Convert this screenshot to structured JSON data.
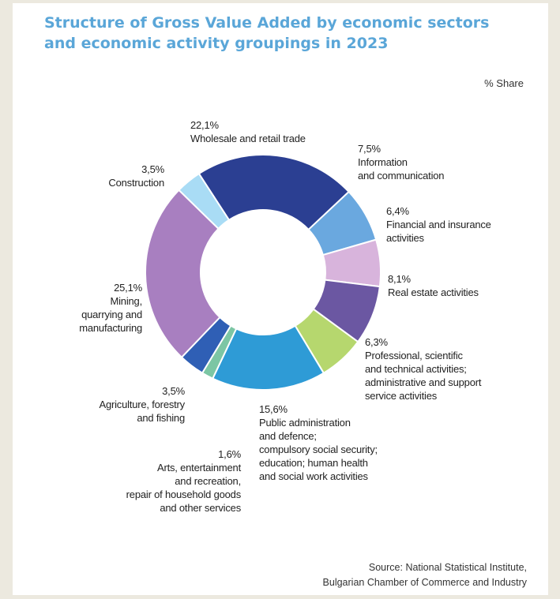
{
  "title_line1": "Structure of Gross Value Added by economic sectors",
  "title_line2": "and economic activity groupings in 2023",
  "unit": "% Share",
  "source_line1": "Source: National Statistical Institute,",
  "source_line2": "Bulgarian Chamber of Commerce and Industry",
  "chart_data": {
    "type": "pie",
    "subtype": "donut",
    "unit": "%",
    "slices": [
      {
        "label": "Wholesale and retail trade",
        "value": 22.1,
        "value_text": "22,1%",
        "color": "#2b3f92"
      },
      {
        "label": "Information\nand communication",
        "value": 7.5,
        "value_text": "7,5%",
        "color": "#6aa8df"
      },
      {
        "label": "Financial and insurance\nactivities",
        "value": 6.4,
        "value_text": "6,4%",
        "color": "#d8b4dc"
      },
      {
        "label": "Real estate activities",
        "value": 8.1,
        "value_text": "8,1%",
        "color": "#6b57a2"
      },
      {
        "label": "Professional, scientific\nand technical activities;\nadministrative and support\nservice activities",
        "value": 6.3,
        "value_text": "6,3%",
        "color": "#b6d76e"
      },
      {
        "label": "Public administration\nand defence;\ncompulsory social security;\neducation; human health\nand social work activities",
        "value": 15.6,
        "value_text": "15,6%",
        "color": "#2e9bd6"
      },
      {
        "label": "Arts, entertainment\nand recreation,\nrepair of household goods\nand other services",
        "value": 1.6,
        "value_text": "1,6%",
        "color": "#7cc6a4"
      },
      {
        "label": "Agriculture, forestry\nand fishing",
        "value": 3.5,
        "value_text": "3,5%",
        "color": "#2f5fb5"
      },
      {
        "label": "Mining,\nquarrying and\nmanufacturing",
        "value": 25.1,
        "value_text": "25,1%",
        "color": "#a87fc0"
      },
      {
        "label": "Construction",
        "value": 3.5,
        "value_text": "3,5%",
        "color": "#a9dcf5"
      }
    ]
  }
}
